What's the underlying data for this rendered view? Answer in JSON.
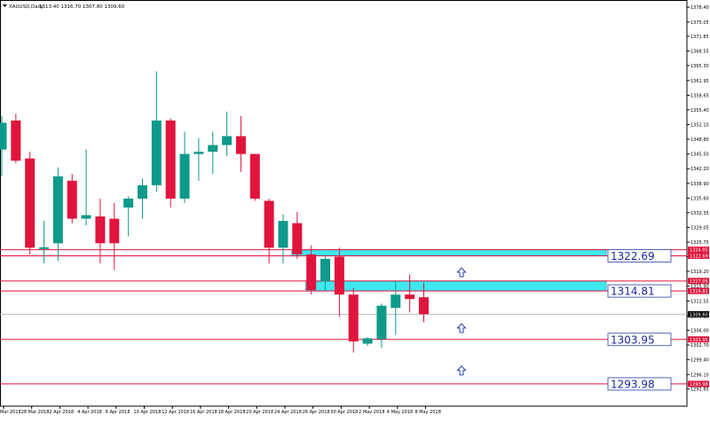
{
  "header": {
    "symbol_timeframe": "XAUUSD,Daily",
    "ohlc": "1313.40 1316.70 1307.80 1309.60"
  },
  "chart_data": {
    "type": "candlestick",
    "title": "XAUUSD,Daily",
    "ylim": [
      1289.0,
      1380.0
    ],
    "up_color": "#0e9a8a",
    "down_color": "#e0143c",
    "level_color": "#e0143c",
    "zone_color": "#3ee9f0",
    "arrow_color": "#2a3fae",
    "y_ticks": [
      "1378.40",
      "1375.05",
      "1371.85",
      "1368.55",
      "1365.30",
      "1361.95",
      "1358.65",
      "1355.40",
      "1352.10",
      "1348.80",
      "1345.50",
      "1342.20",
      "1338.90",
      "1335.60",
      "1332.35",
      "1329.05",
      "1325.75",
      "1322.45",
      "1319.20",
      "1315.90",
      "1312.55",
      "1309.20",
      "1306.00",
      "1302.70",
      "1299.40",
      "1296.10",
      "1292.85"
    ],
    "x_labels": [
      "26 Mar 2018",
      "28 Mar 2018",
      "2 Apr 2018",
      "4 Apr 2018",
      "6 Apr 2018",
      "10 Apr 2018",
      "12 Apr 2018",
      "16 Apr 2018",
      "18 Apr 2018",
      "20 Apr 2018",
      "24 Apr 2018",
      "26 Apr 2018",
      "30 Apr 2018",
      "2 May 2018",
      "4 May 2018",
      "8 May 2018"
    ],
    "candles": [
      {
        "o": 1346.5,
        "h": 1354.0,
        "l": 1340.5,
        "c": 1352.5
      },
      {
        "o": 1353.0,
        "h": 1354.5,
        "l": 1343.5,
        "c": 1344.0
      },
      {
        "o": 1344.5,
        "h": 1346.0,
        "l": 1323.0,
        "c": 1324.5
      },
      {
        "o": 1324.2,
        "h": 1330.5,
        "l": 1321.0,
        "c": 1324.6
      },
      {
        "o": 1325.5,
        "h": 1342.5,
        "l": 1321.5,
        "c": 1340.5
      },
      {
        "o": 1339.5,
        "h": 1341.0,
        "l": 1330.0,
        "c": 1331.0
      },
      {
        "o": 1331.0,
        "h": 1346.5,
        "l": 1329.5,
        "c": 1331.8
      },
      {
        "o": 1331.5,
        "h": 1335.5,
        "l": 1321.0,
        "c": 1325.5
      },
      {
        "o": 1331.0,
        "h": 1334.5,
        "l": 1319.5,
        "c": 1325.5
      },
      {
        "o": 1333.5,
        "h": 1336.0,
        "l": 1327.0,
        "c": 1335.5
      },
      {
        "o": 1335.5,
        "h": 1340.0,
        "l": 1331.0,
        "c": 1338.5
      },
      {
        "o": 1338.5,
        "h": 1364.0,
        "l": 1337.0,
        "c": 1353.0
      },
      {
        "o": 1353.0,
        "h": 1353.5,
        "l": 1333.5,
        "c": 1335.5
      },
      {
        "o": 1335.5,
        "h": 1350.5,
        "l": 1334.5,
        "c": 1345.5
      },
      {
        "o": 1345.5,
        "h": 1349.0,
        "l": 1339.5,
        "c": 1346.0
      },
      {
        "o": 1346.0,
        "h": 1350.5,
        "l": 1341.0,
        "c": 1347.5
      },
      {
        "o": 1347.5,
        "h": 1355.0,
        "l": 1345.0,
        "c": 1349.5
      },
      {
        "o": 1349.5,
        "h": 1354.0,
        "l": 1341.5,
        "c": 1345.5
      },
      {
        "o": 1345.5,
        "h": 1345.5,
        "l": 1335.0,
        "c": 1335.5
      },
      {
        "o": 1335.0,
        "h": 1335.5,
        "l": 1321.0,
        "c": 1324.5
      },
      {
        "o": 1324.5,
        "h": 1332.0,
        "l": 1321.0,
        "c": 1330.5
      },
      {
        "o": 1330.0,
        "h": 1332.5,
        "l": 1322.0,
        "c": 1323.0
      },
      {
        "o": 1323.0,
        "h": 1325.0,
        "l": 1314.0,
        "c": 1315.0
      },
      {
        "o": 1317.0,
        "h": 1323.0,
        "l": 1315.0,
        "c": 1322.0
      },
      {
        "o": 1322.5,
        "h": 1324.5,
        "l": 1309.0,
        "c": 1314.0
      },
      {
        "o": 1314.0,
        "h": 1315.5,
        "l": 1301.0,
        "c": 1303.5
      },
      {
        "o": 1303.0,
        "h": 1304.5,
        "l": 1302.5,
        "c": 1304.2
      },
      {
        "o": 1304.0,
        "h": 1312.0,
        "l": 1302.0,
        "c": 1311.5
      },
      {
        "o": 1311.0,
        "h": 1317.0,
        "l": 1305.0,
        "c": 1314.0
      },
      {
        "o": 1314.0,
        "h": 1318.5,
        "l": 1310.0,
        "c": 1313.0
      },
      {
        "o": 1313.4,
        "h": 1316.7,
        "l": 1307.8,
        "c": 1309.6
      }
    ],
    "levels": [
      {
        "value": 1324.05,
        "tag": "1324.05",
        "label": ""
      },
      {
        "value": 1322.69,
        "tag": "1322.69",
        "label": "1322.69"
      },
      {
        "value": 1317.05,
        "tag": "1317.05",
        "label": ""
      },
      {
        "value": 1314.81,
        "tag": "1314.81",
        "label": "1314.81"
      },
      {
        "value": 1303.95,
        "tag": "1303.95",
        "label": "1303.95"
      },
      {
        "value": 1293.98,
        "tag": "1293.98",
        "label": "1293.98"
      }
    ],
    "zones": [
      {
        "top": 1324.05,
        "bottom": 1322.69,
        "from_index": 21
      },
      {
        "top": 1317.05,
        "bottom": 1314.81,
        "from_index": 22
      }
    ],
    "current_price": {
      "value": 1309.6,
      "tag": "1309.60"
    },
    "arrows": [
      {
        "value": 1319.0
      },
      {
        "value": 1306.5
      },
      {
        "value": 1297.0
      }
    ]
  }
}
